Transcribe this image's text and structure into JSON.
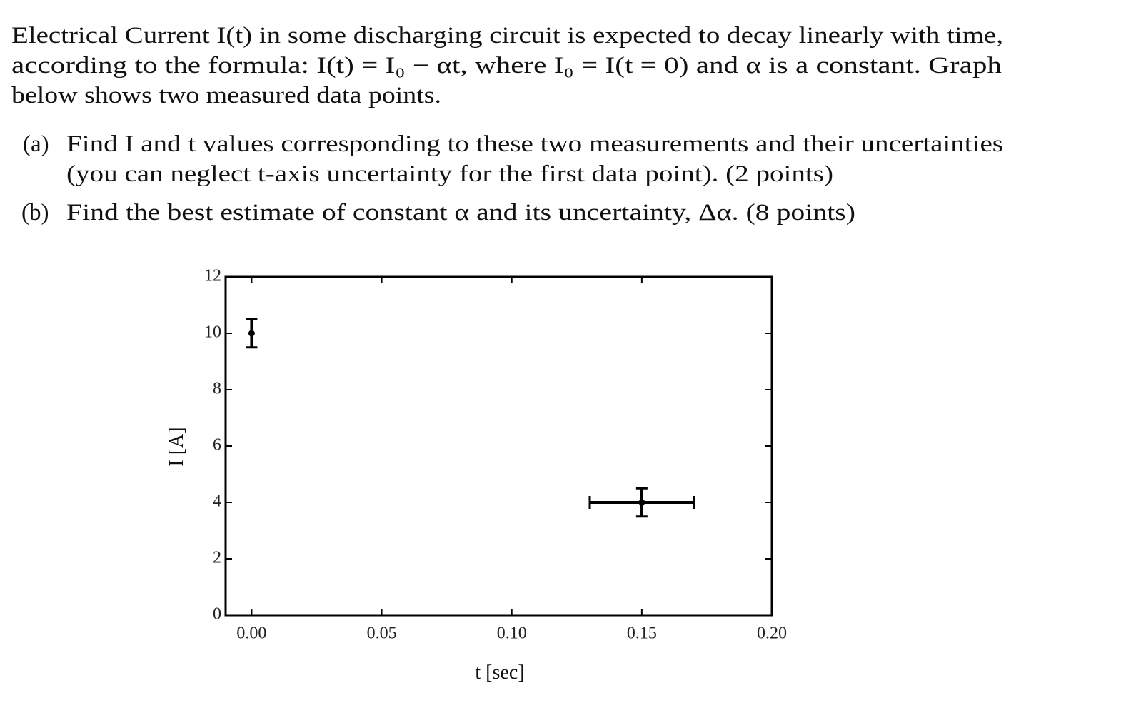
{
  "problem": {
    "intro": [
      "Electrical Current I(t) in some discharging circuit is expected to decay linearly with time,",
      "according to the formula: I(t) = I₀ − αt, where I₀ = I(t = 0) and α is a constant. Graph",
      "below shows two measured data points."
    ],
    "parts": [
      {
        "label": "(a)",
        "lines": [
          "Find I and t values corresponding to these two measurements and their uncertainties",
          "(you can neglect t-axis uncertainty for the first data point). (2 points)"
        ]
      },
      {
        "label": "(b)",
        "lines": [
          "Find the best estimate of constant α and its uncertainty, Δα. (8 points)"
        ]
      }
    ]
  },
  "chart_data": {
    "type": "scatter",
    "x_label": "t [sec]",
    "y_label": "I [A]",
    "x": [
      0,
      0.15
    ],
    "y": [
      10,
      4
    ],
    "xerr": [
      0,
      0.02
    ],
    "yerr": [
      0.5,
      0.5
    ],
    "color": "#000000",
    "xlim": [
      -0.01,
      0.2
    ],
    "ylim": [
      0,
      12
    ],
    "xticks": [
      {
        "value": 0,
        "label": "0.00"
      },
      {
        "value": 0.05,
        "label": "0.05"
      },
      {
        "value": 0.1,
        "label": "0.10"
      },
      {
        "value": 0.15,
        "label": "0.15"
      },
      {
        "value": 0.2,
        "label": "0.20"
      }
    ],
    "yticks": [
      0,
      2,
      4,
      6,
      8,
      10,
      12
    ],
    "grid": false
  }
}
